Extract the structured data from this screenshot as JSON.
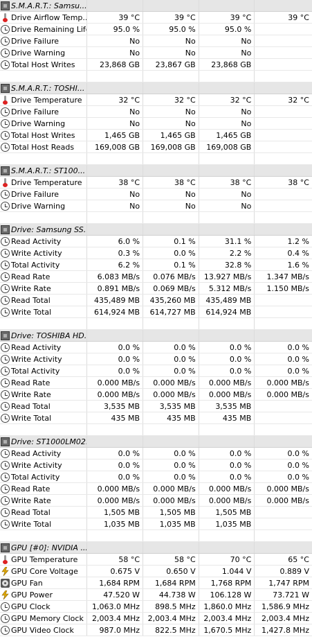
{
  "groups": [
    {
      "header": "S.M.A.R.T.: Samsu...",
      "icon": "chip-icon",
      "rows": [
        {
          "label": "Drive Airflow Temp...",
          "icon": "thermometer-icon",
          "values": [
            "39 °C",
            "39 °C",
            "39 °C",
            "39 °C"
          ]
        },
        {
          "label": "Drive Remaining Life",
          "icon": "clock-icon",
          "values": [
            "95.0 %",
            "95.0 %",
            "95.0 %",
            ""
          ]
        },
        {
          "label": "Drive Failure",
          "icon": "clock-icon",
          "values": [
            "No",
            "No",
            "No",
            ""
          ]
        },
        {
          "label": "Drive Warning",
          "icon": "clock-icon",
          "values": [
            "No",
            "No",
            "No",
            ""
          ]
        },
        {
          "label": "Total Host Writes",
          "icon": "clock-icon",
          "values": [
            "23,868 GB",
            "23,867 GB",
            "23,868 GB",
            ""
          ]
        }
      ]
    },
    {
      "header": "S.M.A.R.T.: TOSHI...",
      "icon": "chip-icon",
      "rows": [
        {
          "label": "Drive Temperature",
          "icon": "thermometer-icon",
          "values": [
            "32 °C",
            "32 °C",
            "32 °C",
            "32 °C"
          ]
        },
        {
          "label": "Drive Failure",
          "icon": "clock-icon",
          "values": [
            "No",
            "No",
            "No",
            ""
          ]
        },
        {
          "label": "Drive Warning",
          "icon": "clock-icon",
          "values": [
            "No",
            "No",
            "No",
            ""
          ]
        },
        {
          "label": "Total Host Writes",
          "icon": "clock-icon",
          "values": [
            "1,465 GB",
            "1,465 GB",
            "1,465 GB",
            ""
          ]
        },
        {
          "label": "Total Host Reads",
          "icon": "clock-icon",
          "values": [
            "169,008 GB",
            "169,008 GB",
            "169,008 GB",
            ""
          ]
        }
      ]
    },
    {
      "header": "S.M.A.R.T.: ST100...",
      "icon": "chip-icon",
      "rows": [
        {
          "label": "Drive Temperature",
          "icon": "thermometer-icon",
          "values": [
            "38 °C",
            "38 °C",
            "38 °C",
            "38 °C"
          ]
        },
        {
          "label": "Drive Failure",
          "icon": "clock-icon",
          "values": [
            "No",
            "No",
            "No",
            ""
          ]
        },
        {
          "label": "Drive Warning",
          "icon": "clock-icon",
          "values": [
            "No",
            "No",
            "No",
            ""
          ]
        }
      ]
    },
    {
      "header": "Drive: Samsung SS...",
      "icon": "chip-icon",
      "rows": [
        {
          "label": "Read Activity",
          "icon": "clock-icon",
          "values": [
            "6.0 %",
            "0.1 %",
            "31.1 %",
            "1.2 %"
          ]
        },
        {
          "label": "Write Activity",
          "icon": "clock-icon",
          "values": [
            "0.3 %",
            "0.0 %",
            "2.2 %",
            "0.4 %"
          ]
        },
        {
          "label": "Total Activity",
          "icon": "clock-icon",
          "values": [
            "6.2 %",
            "0.1 %",
            "32.8 %",
            "1.6 %"
          ]
        },
        {
          "label": "Read Rate",
          "icon": "clock-icon",
          "values": [
            "6.083 MB/s",
            "0.076 MB/s",
            "13.927 MB/s",
            "1.347 MB/s"
          ]
        },
        {
          "label": "Write Rate",
          "icon": "clock-icon",
          "values": [
            "0.891 MB/s",
            "0.069 MB/s",
            "5.312 MB/s",
            "1.150 MB/s"
          ]
        },
        {
          "label": "Read Total",
          "icon": "clock-icon",
          "values": [
            "435,489 MB",
            "435,260 MB",
            "435,489 MB",
            ""
          ]
        },
        {
          "label": "Write Total",
          "icon": "clock-icon",
          "values": [
            "614,924 MB",
            "614,727 MB",
            "614,924 MB",
            ""
          ]
        }
      ]
    },
    {
      "header": "Drive: TOSHIBA HD...",
      "icon": "chip-icon",
      "rows": [
        {
          "label": "Read Activity",
          "icon": "clock-icon",
          "values": [
            "0.0 %",
            "0.0 %",
            "0.0 %",
            "0.0 %"
          ]
        },
        {
          "label": "Write Activity",
          "icon": "clock-icon",
          "values": [
            "0.0 %",
            "0.0 %",
            "0.0 %",
            "0.0 %"
          ]
        },
        {
          "label": "Total Activity",
          "icon": "clock-icon",
          "values": [
            "0.0 %",
            "0.0 %",
            "0.0 %",
            "0.0 %"
          ]
        },
        {
          "label": "Read Rate",
          "icon": "clock-icon",
          "values": [
            "0.000 MB/s",
            "0.000 MB/s",
            "0.000 MB/s",
            "0.000 MB/s"
          ]
        },
        {
          "label": "Write Rate",
          "icon": "clock-icon",
          "values": [
            "0.000 MB/s",
            "0.000 MB/s",
            "0.000 MB/s",
            "0.000 MB/s"
          ]
        },
        {
          "label": "Read Total",
          "icon": "clock-icon",
          "values": [
            "3,535 MB",
            "3,535 MB",
            "3,535 MB",
            ""
          ]
        },
        {
          "label": "Write Total",
          "icon": "clock-icon",
          "values": [
            "435 MB",
            "435 MB",
            "435 MB",
            ""
          ]
        }
      ]
    },
    {
      "header": "Drive: ST1000LM02...",
      "icon": "chip-icon",
      "rows": [
        {
          "label": "Read Activity",
          "icon": "clock-icon",
          "values": [
            "0.0 %",
            "0.0 %",
            "0.0 %",
            "0.0 %"
          ]
        },
        {
          "label": "Write Activity",
          "icon": "clock-icon",
          "values": [
            "0.0 %",
            "0.0 %",
            "0.0 %",
            "0.0 %"
          ]
        },
        {
          "label": "Total Activity",
          "icon": "clock-icon",
          "values": [
            "0.0 %",
            "0.0 %",
            "0.0 %",
            "0.0 %"
          ]
        },
        {
          "label": "Read Rate",
          "icon": "clock-icon",
          "values": [
            "0.000 MB/s",
            "0.000 MB/s",
            "0.000 MB/s",
            "0.000 MB/s"
          ]
        },
        {
          "label": "Write Rate",
          "icon": "clock-icon",
          "values": [
            "0.000 MB/s",
            "0.000 MB/s",
            "0.000 MB/s",
            "0.000 MB/s"
          ]
        },
        {
          "label": "Read Total",
          "icon": "clock-icon",
          "values": [
            "1,505 MB",
            "1,505 MB",
            "1,505 MB",
            ""
          ]
        },
        {
          "label": "Write Total",
          "icon": "clock-icon",
          "values": [
            "1,035 MB",
            "1,035 MB",
            "1,035 MB",
            ""
          ]
        }
      ]
    },
    {
      "header": "GPU [#0]: NVIDIA ...",
      "icon": "chip-icon",
      "rows": [
        {
          "label": "GPU Temperature",
          "icon": "thermometer-icon",
          "values": [
            "58 °C",
            "58 °C",
            "70 °C",
            "65 °C"
          ]
        },
        {
          "label": "GPU Core Voltage",
          "icon": "lightning-icon",
          "values": [
            "0.675 V",
            "0.650 V",
            "1.044 V",
            "0.889 V"
          ]
        },
        {
          "label": "GPU Fan",
          "icon": "fan-icon",
          "values": [
            "1,684 RPM",
            "1,684 RPM",
            "1,768 RPM",
            "1,747 RPM"
          ]
        },
        {
          "label": "GPU Power",
          "icon": "lightning-icon",
          "values": [
            "47.520 W",
            "44.738 W",
            "106.128 W",
            "73.721 W"
          ]
        },
        {
          "label": "GPU Clock",
          "icon": "clock-icon",
          "values": [
            "1,063.0 MHz",
            "898.5 MHz",
            "1,860.0 MHz",
            "1,586.9 MHz"
          ]
        },
        {
          "label": "GPU Memory Clock",
          "icon": "clock-icon",
          "values": [
            "2,003.4 MHz",
            "2,003.4 MHz",
            "2,003.4 MHz",
            "2,003.4 MHz"
          ]
        },
        {
          "label": "GPU Video Clock",
          "icon": "clock-icon",
          "values": [
            "987.0 MHz",
            "822.5 MHz",
            "1,670.5 MHz",
            "1,427.8 MHz"
          ]
        }
      ]
    }
  ]
}
